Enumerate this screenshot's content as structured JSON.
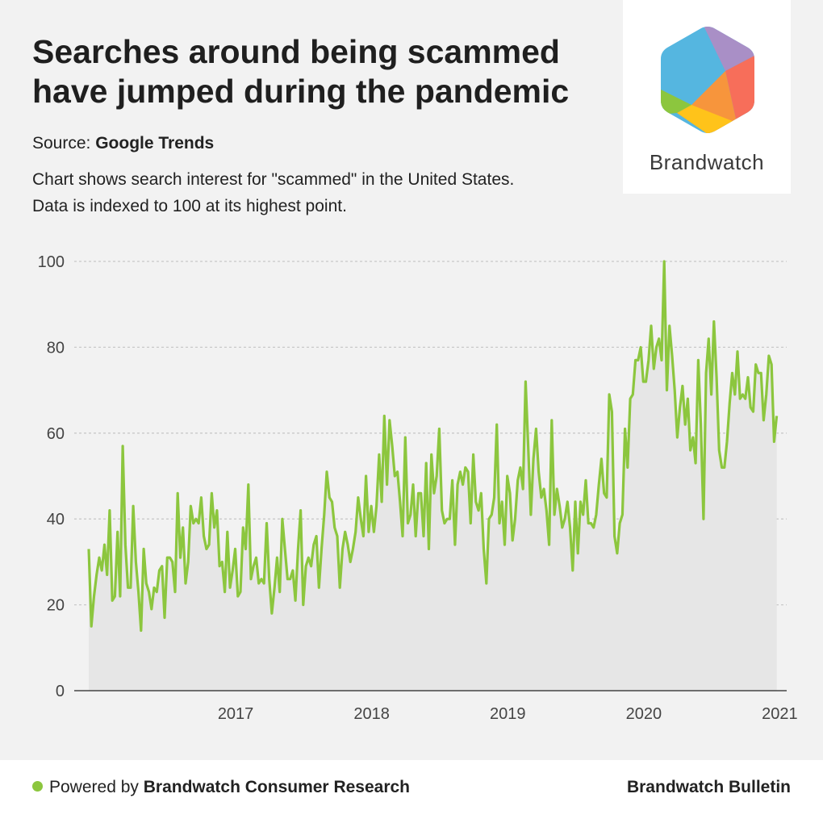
{
  "header": {
    "title_line1": "Searches around being scammed",
    "title_line2": "have jumped during the pandemic",
    "source_prefix": "Source: ",
    "source_name": "Google Trends",
    "description_line1": "Chart shows search interest for \"scammed\" in the United States.",
    "description_line2": "Data is indexed to 100 at its highest point."
  },
  "logo": {
    "name": "Brandwatch",
    "colors": [
      "#55b6e0",
      "#a98fc6",
      "#f76e5a",
      "#f7953c",
      "#ffc31a",
      "#8cc63e"
    ]
  },
  "footer": {
    "powered_prefix": "Powered by ",
    "powered_name": "Brandwatch Consumer Research",
    "right_label": "Brandwatch Bulletin"
  },
  "colors": {
    "line": "#8cc63e",
    "area": "#e6e6e6",
    "grid": "#c9c9c9",
    "axis": "#444444"
  },
  "chart_data": {
    "type": "line",
    "title": "",
    "xlabel": "",
    "ylabel": "",
    "ylim": [
      0,
      100
    ],
    "yticks": [
      0,
      20,
      40,
      60,
      80,
      100
    ],
    "xticks": [
      2017,
      2018,
      2019,
      2020,
      2021
    ],
    "xlim": [
      2016.42,
      2021.45
    ],
    "grid": true,
    "area_fill": true,
    "series": [
      {
        "x_start": 2016.42,
        "x_step": 0.01923,
        "values": [
          33,
          15,
          22,
          27,
          31,
          28,
          34,
          27,
          42,
          21,
          22,
          37,
          22,
          57,
          34,
          24,
          24,
          43,
          30,
          23,
          14,
          33,
          25,
          23,
          19,
          24,
          23,
          28,
          29,
          17,
          31,
          31,
          30,
          23,
          46,
          31,
          38,
          25,
          30,
          43,
          39,
          40,
          39,
          45,
          36,
          33,
          34,
          46,
          38,
          42,
          29,
          30,
          23,
          37,
          24,
          28,
          33,
          22,
          23,
          38,
          33,
          48,
          26,
          29,
          31,
          25,
          26,
          25,
          39,
          26,
          18,
          24,
          31,
          23,
          40,
          33,
          26,
          26,
          28,
          21,
          33,
          42,
          20,
          29,
          31,
          29,
          34,
          36,
          24,
          33,
          41,
          51,
          45,
          44,
          38,
          36,
          24,
          33,
          37,
          34,
          30,
          33,
          37,
          45,
          40,
          36,
          50,
          37,
          43,
          37,
          43,
          55,
          44,
          64,
          48,
          63,
          57,
          50,
          51,
          44,
          36,
          59,
          39,
          41,
          48,
          36,
          46,
          46,
          36,
          53,
          33,
          55,
          46,
          50,
          61,
          42,
          39,
          40,
          40,
          49,
          34,
          48,
          51,
          48,
          52,
          51,
          39,
          55,
          44,
          42,
          46,
          33,
          25,
          40,
          41,
          45,
          62,
          39,
          44,
          34,
          50,
          46,
          35,
          40,
          49,
          52,
          47,
          72,
          57,
          41,
          54,
          61,
          51,
          45,
          47,
          42,
          34,
          63,
          41,
          47,
          43,
          38,
          40,
          44,
          38,
          28,
          44,
          32,
          44,
          41,
          49,
          39,
          39,
          38,
          41,
          48,
          54,
          46,
          45,
          69,
          65,
          36,
          32,
          39,
          41,
          61,
          52,
          68,
          69,
          77,
          77,
          80,
          72,
          72,
          77,
          85,
          75,
          80,
          82,
          77,
          100,
          70,
          85,
          78,
          70,
          59,
          66,
          71,
          62,
          68,
          56,
          59,
          53,
          77,
          62,
          40,
          74,
          82,
          69,
          86,
          73,
          56,
          52,
          52,
          58,
          67,
          74,
          69,
          79,
          68,
          69,
          68,
          73,
          66,
          65,
          76,
          74,
          74,
          63,
          69,
          78,
          76,
          58,
          64
        ]
      }
    ]
  }
}
